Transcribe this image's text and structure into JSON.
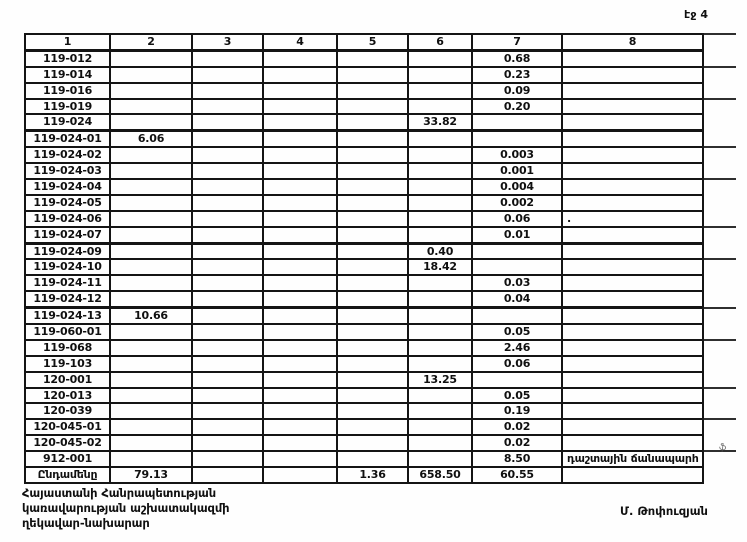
{
  "page": {
    "page_label": "էջ 4",
    "margin_mark": "ֆ",
    "footer_lines": [
      "Հայաստանի Հանրապետության",
      "կառավարության աշխատակազմի",
      "ղեկավար-նախարար"
    ],
    "signature": "Մ. Թոփուզյան"
  },
  "table": {
    "headers": [
      "1",
      "2",
      "3",
      "4",
      "5",
      "6",
      "7",
      "8"
    ],
    "rows": [
      [
        "119-012",
        "",
        "",
        "",
        "",
        "",
        "0.68",
        ""
      ],
      [
        "119-014",
        "",
        "",
        "",
        "",
        "",
        "0.23",
        ""
      ],
      [
        "119-016",
        "",
        "",
        "",
        "",
        "",
        "0.09",
        ""
      ],
      [
        "119-019",
        "",
        "",
        "",
        "",
        "",
        "0.20",
        ""
      ],
      [
        "119-024",
        "",
        "",
        "",
        "",
        "33.82",
        "",
        ""
      ],
      [
        "119-024-01",
        "6.06",
        "",
        "",
        "",
        "",
        "",
        ""
      ],
      [
        "119-024-02",
        "",
        "",
        "",
        "",
        "",
        "0.003",
        ""
      ],
      [
        "119-024-03",
        "",
        "",
        "",
        "",
        "",
        "0.001",
        ""
      ],
      [
        "119-024-04",
        "",
        "",
        "",
        "",
        "",
        "0.004",
        ""
      ],
      [
        "119-024-05",
        "",
        "",
        "",
        "",
        "",
        "0.002",
        ""
      ],
      [
        "119-024-06",
        "",
        "",
        "",
        "",
        "",
        "0.06",
        "."
      ],
      [
        "119-024-07",
        "",
        "",
        "",
        "",
        "",
        "0.01",
        ""
      ],
      [
        "119-024-09",
        "",
        "",
        "",
        "",
        "0.40",
        "",
        ""
      ],
      [
        "119-024-10",
        "",
        "",
        "",
        "",
        "18.42",
        "",
        ""
      ],
      [
        "119-024-11",
        "",
        "",
        "",
        "",
        "",
        "0.03",
        ""
      ],
      [
        "119-024-12",
        "",
        "",
        "",
        "",
        "",
        "0.04",
        ""
      ],
      [
        "119-024-13",
        "10.66",
        "",
        "",
        "",
        "",
        "",
        ""
      ],
      [
        "119-060-01",
        "",
        "",
        "",
        "",
        "",
        "0.05",
        ""
      ],
      [
        "119-068",
        "",
        "",
        "",
        "",
        "",
        "2.46",
        ""
      ],
      [
        "119-103",
        "",
        "",
        "",
        "",
        "",
        "0.06",
        ""
      ],
      [
        "120-001",
        "",
        "",
        "",
        "",
        "13.25",
        "",
        ""
      ],
      [
        "120-013",
        "",
        "",
        "",
        "",
        "",
        "0.05",
        ""
      ],
      [
        "120-039",
        "",
        "",
        "",
        "",
        "",
        "0.19",
        ""
      ],
      [
        "120-045-01",
        "",
        "",
        "",
        "",
        "",
        "0.02",
        ""
      ],
      [
        "120-045-02",
        "",
        "",
        "",
        "",
        "",
        "0.02",
        ""
      ],
      [
        "912-001",
        "",
        "",
        "",
        "",
        "",
        "8.50",
        "դաշտային ճանապարհ"
      ],
      [
        "Ընդամենը",
        "79.13",
        "",
        "",
        "1.36",
        "658.50",
        "60.55",
        ""
      ]
    ]
  }
}
